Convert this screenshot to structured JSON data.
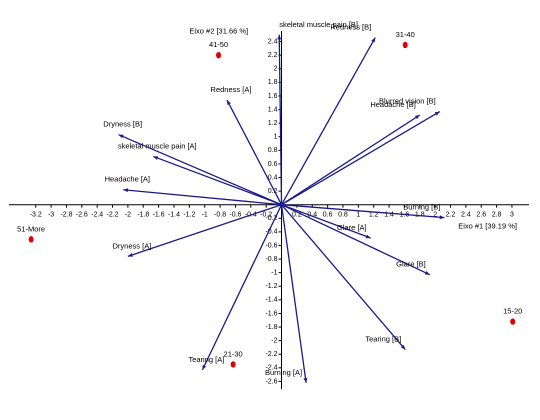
{
  "chart_data": {
    "type": "biplot",
    "x_label": "Eixo #1 [39.19 %]",
    "y_label": "Eixo #2 [31.66 %]",
    "xlim": [
      -3.6,
      3.3
    ],
    "ylim": [
      -2.8,
      2.85
    ],
    "xticks": [
      -3.2,
      -3,
      -2.8,
      -2.6,
      -2.4,
      -2.2,
      -2,
      -1.8,
      -1.6,
      -1.4,
      -1.2,
      -1,
      -0.8,
      -0.6,
      -0.4,
      -0.2,
      0.2,
      0.4,
      0.6,
      0.8,
      1,
      1.2,
      1.4,
      1.6,
      1.8,
      2,
      2.2,
      2.4,
      2.6,
      2.8,
      3
    ],
    "yticks": [
      2.4,
      2.2,
      2,
      1.8,
      1.6,
      1.4,
      1.2,
      1,
      0.8,
      0.6,
      0.4,
      0.2,
      -0.2,
      -0.4,
      -0.6,
      -0.8,
      -1,
      -1.2,
      -1.4,
      -1.6,
      -1.8,
      -2,
      -2.2,
      -2.4,
      -2.6
    ],
    "vector_color": "#1a1a8c",
    "point_color": "#e00000",
    "vectors": [
      {
        "name": "skeletal muscle pain [B]",
        "x": -0.03,
        "y": 2.5
      },
      {
        "name": "Redness [B]",
        "x": 1.22,
        "y": 2.46
      },
      {
        "name": "Blurred vision [B]",
        "x": 2.06,
        "y": 1.37
      },
      {
        "name": "Headache [B]",
        "x": 1.8,
        "y": 1.32
      },
      {
        "name": "Burning [B]",
        "x": 2.12,
        "y": -0.19
      },
      {
        "name": "Glare [B]",
        "x": 1.93,
        "y": -1.03
      },
      {
        "name": "Glare [A]",
        "x": 1.16,
        "y": -0.49
      },
      {
        "name": "Tearing [B]",
        "x": 1.61,
        "y": -2.13
      },
      {
        "name": "Burning [A]",
        "x": 0.32,
        "y": -2.62
      },
      {
        "name": "Tearing [A]",
        "x": -1.03,
        "y": -2.43
      },
      {
        "name": "Dryness [A]",
        "x": -2.0,
        "y": -0.76
      },
      {
        "name": "Headache [A]",
        "x": -2.06,
        "y": 0.22
      },
      {
        "name": "skeletal muscle pain [A]",
        "x": -1.67,
        "y": 0.71
      },
      {
        "name": "Dryness [B]",
        "x": -2.12,
        "y": 1.03
      },
      {
        "name": "Redness [A]",
        "x": -0.71,
        "y": 1.54
      }
    ],
    "points": [
      {
        "name": "41-50",
        "x": -0.82,
        "y": 2.2
      },
      {
        "name": "31-40",
        "x": 1.61,
        "y": 2.35
      },
      {
        "name": "51-More",
        "x": -3.26,
        "y": -0.51
      },
      {
        "name": "21-30",
        "x": -0.63,
        "y": -2.35
      },
      {
        "name": "15-20",
        "x": 3.01,
        "y": -1.72
      }
    ]
  }
}
